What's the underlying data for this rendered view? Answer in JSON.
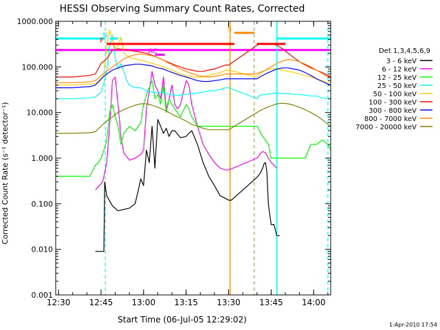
{
  "chart_data": {
    "type": "line",
    "title": "HESSI Observing Summary Count Rates, Corrected",
    "xlabel": "Start Time (06-Jul-05 12:29:02)",
    "ylabel": "Corrected Count Rate (s⁻¹ detector⁻¹)",
    "footer": "1-Apr-2010 17:54",
    "x_unit": "minutes after 12:29:02 UT",
    "xlim": [
      0,
      97
    ],
    "ylim": [
      0.001,
      1000
    ],
    "y_scale": "log",
    "x_ticks": [
      {
        "label": "12:30",
        "value": 1
      },
      {
        "label": "12:45",
        "value": 16
      },
      {
        "label": "13:00",
        "value": 31
      },
      {
        "label": "13:15",
        "value": 46
      },
      {
        "label": "13:30",
        "value": 61
      },
      {
        "label": "13:45",
        "value": 76
      },
      {
        "label": "14:00",
        "value": 91
      }
    ],
    "y_ticks": [
      {
        "label": "1000.000",
        "value": 1000
      },
      {
        "label": "100.000",
        "value": 100
      },
      {
        "label": "10.000",
        "value": 10
      },
      {
        "label": "1.000",
        "value": 1
      },
      {
        "label": "0.100",
        "value": 0.1
      },
      {
        "label": "0.010",
        "value": 0.01
      },
      {
        "label": "0.001",
        "value": 0.001
      }
    ],
    "legend_title": "Det 1,3,4,5,6,9",
    "legend_position": "right, outside plot",
    "series": [
      {
        "name": "3 - 6 keV",
        "color": "#000000",
        "x": [
          14,
          17,
          17.3,
          18,
          20,
          22,
          24,
          26,
          28,
          29,
          30,
          31,
          32,
          33,
          34,
          35,
          36,
          37,
          38,
          39,
          40,
          41,
          42,
          44,
          46,
          47,
          48,
          50,
          52,
          54,
          56,
          58,
          60,
          61,
          62,
          71,
          72,
          73,
          73.5,
          74,
          74.5,
          75,
          76,
          77,
          78,
          79
        ],
        "y": [
          0.009,
          0.009,
          0.3,
          0.15,
          0.09,
          0.07,
          0.075,
          0.08,
          0.1,
          0.18,
          0.35,
          0.25,
          1.5,
          0.8,
          5,
          0.6,
          7,
          5,
          3.5,
          4.5,
          3,
          4,
          4,
          2.8,
          3,
          3.5,
          4,
          2,
          0.8,
          0.4,
          0.25,
          0.15,
          0.13,
          0.12,
          0.12,
          0.38,
          0.45,
          0.6,
          0.75,
          0.8,
          0.5,
          0.1,
          0.035,
          0.035,
          0.02,
          0.02
        ]
      },
      {
        "name": "6 - 12 keV",
        "color": "#ff00ff",
        "x": [
          14,
          16.5,
          17,
          18,
          19,
          20,
          21,
          22,
          23,
          24,
          26,
          28,
          30,
          31,
          32,
          33,
          34,
          35,
          36,
          37,
          38,
          39,
          40,
          41,
          42,
          43,
          44,
          46,
          47,
          48,
          50,
          52,
          54,
          56,
          58,
          60,
          61,
          71,
          72,
          73,
          74,
          75,
          76,
          77,
          78
        ],
        "y": [
          0.2,
          0.3,
          0.4,
          0.8,
          5,
          50,
          60,
          15,
          3,
          1.3,
          0.9,
          1.0,
          1.2,
          1.5,
          12,
          30,
          80,
          40,
          30,
          20,
          60,
          12,
          20,
          40,
          15,
          12,
          15,
          50,
          40,
          15,
          5,
          2,
          1.2,
          0.8,
          0.6,
          0.55,
          0.55,
          1.0,
          1.2,
          1.4,
          1.3,
          1.0,
          0.8,
          0.7,
          0.6
        ]
      },
      {
        "name": "12 - 25 keV",
        "color": "#00ff00",
        "x": [
          0,
          12,
          14,
          15,
          16,
          17,
          18,
          19,
          20,
          21,
          22,
          23,
          24,
          26,
          28,
          30,
          31,
          32,
          33,
          34,
          35,
          36,
          37,
          38,
          39,
          40,
          41,
          42,
          44,
          46,
          47,
          48,
          50,
          52,
          54,
          56,
          58,
          60,
          61,
          71,
          73,
          75,
          76,
          78,
          82,
          85,
          88,
          90,
          92,
          94,
          96,
          97
        ],
        "y": [
          0.4,
          0.4,
          0.7,
          0.8,
          1.0,
          1.5,
          2.5,
          10,
          15,
          8,
          5,
          2,
          3.5,
          5,
          4,
          6,
          15,
          25,
          35,
          50,
          20,
          25,
          15,
          40,
          10,
          20,
          15,
          12,
          8,
          15,
          12,
          8,
          5,
          5,
          5,
          5,
          5,
          5,
          5,
          5,
          3,
          2,
          1.0,
          1.0,
          1.0,
          1.0,
          1.0,
          2,
          2,
          2.5,
          2,
          1.5
        ]
      },
      {
        "name": "25 - 50 keV",
        "color": "#00ffff",
        "x": [
          0,
          6,
          12,
          14,
          16,
          17,
          18,
          19,
          20,
          21,
          22,
          23,
          24,
          25,
          26,
          28,
          30,
          32,
          34,
          36,
          38,
          40,
          42,
          44,
          46,
          48,
          50,
          52,
          54,
          56,
          58,
          60,
          61,
          71,
          72,
          74,
          76,
          78,
          80,
          82,
          84,
          86,
          88,
          90,
          92,
          94,
          96,
          97
        ],
        "y": [
          20,
          20,
          21,
          22,
          28,
          45,
          80,
          300,
          500,
          150,
          90,
          120,
          80,
          50,
          40,
          35,
          35,
          30,
          28,
          27,
          28,
          25,
          24,
          24,
          25,
          26,
          27,
          28,
          30,
          30,
          32,
          35,
          35,
          20,
          24,
          25,
          26,
          27,
          26,
          26,
          25,
          25,
          24,
          23,
          23,
          21,
          20,
          20
        ]
      },
      {
        "name": "50 - 100 keV",
        "color": "#ffcc00",
        "x": [
          0,
          6,
          12,
          14,
          16,
          17,
          18,
          19,
          20,
          21,
          22,
          23,
          24,
          26,
          28,
          30,
          32,
          34,
          36,
          38,
          40,
          42,
          44,
          46,
          48,
          50,
          52,
          54,
          56,
          58,
          60,
          61,
          71,
          72,
          74,
          76,
          78,
          80,
          82,
          84,
          86,
          88,
          90,
          92,
          94,
          96,
          97
        ],
        "y": [
          40,
          40,
          42,
          44,
          50,
          70,
          300,
          650,
          400,
          250,
          300,
          450,
          200,
          160,
          150,
          140,
          130,
          120,
          110,
          100,
          90,
          80,
          70,
          65,
          60,
          60,
          60,
          65,
          70,
          75,
          85,
          85,
          60,
          70,
          85,
          90,
          90,
          85,
          80,
          75,
          70,
          65,
          60,
          55,
          50,
          45,
          45
        ]
      },
      {
        "name": "100 - 300 keV",
        "color": "#ff0000",
        "x": [
          0,
          6,
          12,
          14,
          16,
          18,
          20,
          22,
          24,
          26,
          28,
          30,
          32,
          34,
          36,
          38,
          40,
          42,
          44,
          46,
          48,
          50,
          52,
          54,
          56,
          58,
          60,
          61,
          71,
          72,
          74,
          76,
          78,
          80,
          82,
          84,
          86,
          88,
          90,
          92,
          94,
          96,
          97
        ],
        "y": [
          60,
          60,
          65,
          70,
          120,
          150,
          230,
          250,
          240,
          230,
          220,
          210,
          200,
          180,
          160,
          140,
          125,
          110,
          100,
          90,
          85,
          80,
          80,
          85,
          90,
          100,
          110,
          110,
          300,
          320,
          320,
          320,
          300,
          250,
          200,
          160,
          130,
          110,
          95,
          85,
          75,
          65,
          60
        ]
      },
      {
        "name": "300 - 800 keV",
        "color": "#0000ff",
        "x": [
          0,
          6,
          12,
          14,
          16,
          18,
          20,
          22,
          24,
          26,
          28,
          30,
          32,
          34,
          36,
          38,
          40,
          42,
          44,
          46,
          48,
          50,
          52,
          54,
          56,
          58,
          60,
          61,
          71,
          72,
          74,
          76,
          78,
          80,
          82,
          84,
          86,
          88,
          90,
          92,
          94,
          96,
          97
        ],
        "y": [
          35,
          35,
          37,
          40,
          55,
          70,
          85,
          95,
          105,
          110,
          115,
          115,
          110,
          105,
          95,
          90,
          80,
          72,
          65,
          60,
          55,
          50,
          48,
          48,
          50,
          52,
          55,
          55,
          55,
          60,
          70,
          80,
          90,
          95,
          95,
          90,
          85,
          75,
          65,
          55,
          48,
          42,
          40
        ]
      },
      {
        "name": "800 - 7000 keV",
        "color": "#ff8800",
        "x": [
          0,
          6,
          12,
          14,
          16,
          18,
          20,
          22,
          24,
          26,
          28,
          30,
          32,
          34,
          36,
          38,
          40,
          42,
          44,
          46,
          48,
          50,
          52,
          54,
          56,
          58,
          60,
          61,
          71,
          72,
          74,
          76,
          78,
          80,
          82,
          84,
          86,
          88,
          90,
          92,
          94,
          96,
          97
        ],
        "y": [
          45,
          45,
          47,
          50,
          65,
          80,
          100,
          120,
          150,
          170,
          185,
          190,
          185,
          175,
          160,
          140,
          120,
          105,
          90,
          80,
          72,
          65,
          62,
          60,
          62,
          65,
          70,
          70,
          70,
          75,
          85,
          100,
          120,
          135,
          145,
          140,
          130,
          115,
          100,
          85,
          72,
          60,
          55
        ]
      },
      {
        "name": "7000 - 20000 keV",
        "color": "#808000",
        "x": [
          0,
          6,
          12,
          14,
          16,
          18,
          20,
          22,
          24,
          26,
          28,
          30,
          32,
          34,
          36,
          38,
          40,
          42,
          44,
          46,
          48,
          50,
          52,
          54,
          56,
          58,
          60,
          61,
          71,
          72,
          74,
          76,
          78,
          80,
          82,
          84,
          86,
          88,
          90,
          92,
          94,
          96,
          97
        ],
        "y": [
          3.5,
          3.5,
          3.6,
          3.8,
          5,
          6.5,
          8,
          10,
          11.5,
          13,
          14.5,
          15.5,
          15.5,
          14.5,
          13,
          11.5,
          10,
          8.5,
          7.5,
          6.5,
          5.5,
          5,
          4.5,
          4.2,
          4.2,
          4.2,
          4.2,
          4.2,
          10,
          11,
          12.5,
          14,
          15.5,
          16,
          15.5,
          14.5,
          13,
          11.5,
          10,
          8.5,
          7,
          5.5,
          5
        ]
      }
    ],
    "event_flags": [
      {
        "label": "F",
        "color": "#ff0000",
        "y": 320,
        "x_range": [
          18,
          63
        ]
      },
      {
        "label": "N",
        "color": "#00ffff",
        "y": 420,
        "x_range": [
          19,
          22
        ]
      },
      {
        "label": "AC",
        "color": "#ff00ff",
        "y": 185,
        "x_range": [
          35,
          38.5
        ]
      },
      {
        "label": "S",
        "color": "#ff8800",
        "y": 560,
        "x_range": [
          63,
          70
        ]
      },
      {
        "label": "",
        "color": "#ff0000",
        "y": 320,
        "x_range": [
          71,
          81
        ]
      }
    ],
    "reference_lines": [
      {
        "kind": "horizontal",
        "color": "#ff00ff",
        "y": 235,
        "x_range": [
          0,
          97
        ]
      },
      {
        "kind": "horizontal",
        "color": "#00ffff",
        "y": 420,
        "x_range": [
          0,
          17.5
        ]
      },
      {
        "kind": "horizontal",
        "color": "#00ffff",
        "y": 420,
        "x_range": [
          78,
          97
        ]
      },
      {
        "kind": "vertical",
        "color": "#00ffff",
        "style": "dashed",
        "x": 17.5
      },
      {
        "kind": "vertical",
        "color": "#00ffff",
        "style": "dashed",
        "x": 96
      },
      {
        "kind": "vertical",
        "color": "#00ffff",
        "style": "solid",
        "x": 78
      },
      {
        "kind": "vertical",
        "color": "#ff8800",
        "style": "solid",
        "x": 61.5
      },
      {
        "kind": "vertical",
        "color": "#ff8800",
        "style": "dashed",
        "x": 70
      }
    ]
  }
}
